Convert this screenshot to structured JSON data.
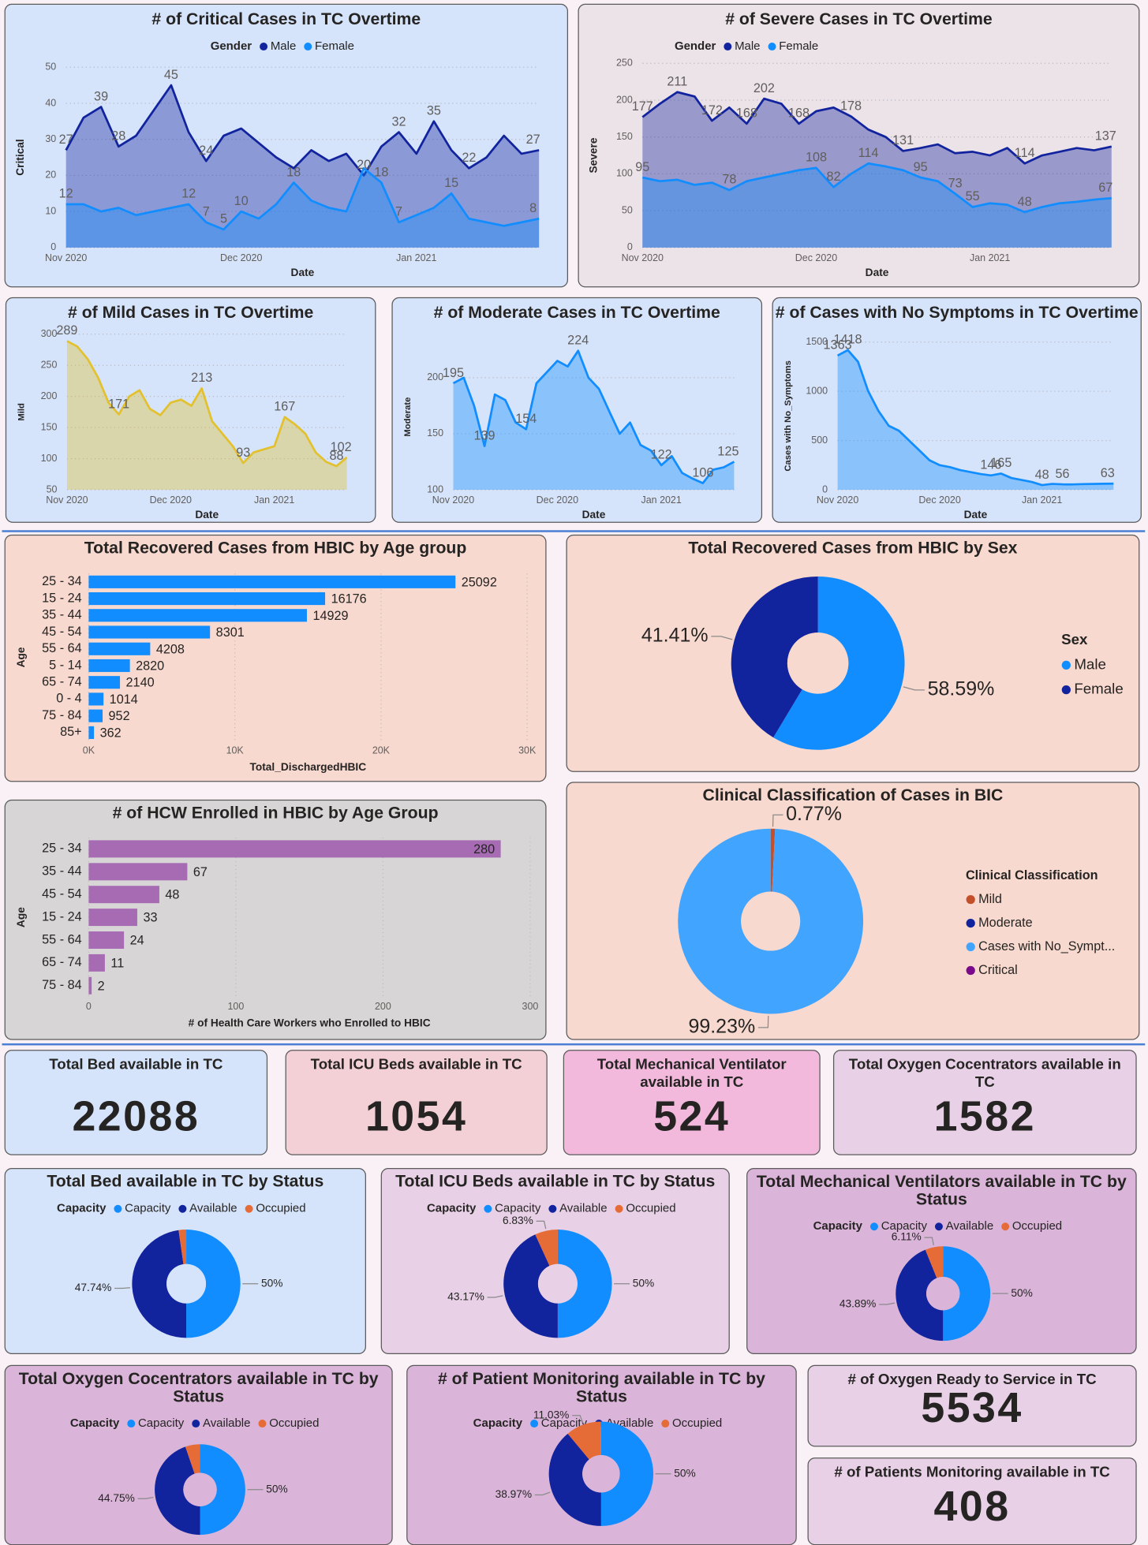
{
  "chart_data": [
    {
      "type": "line",
      "title": "# of Critical Cases in TC Overtime",
      "background": "#d6e4fb",
      "xlabel": "Date",
      "ylabel": "Critical",
      "legend_title": "Gender",
      "legend": "top",
      "grid": true,
      "categories": [
        "Nov 2020",
        null,
        null,
        null,
        null,
        null,
        null,
        null,
        null,
        null,
        "Dec 2020",
        null,
        null,
        null,
        null,
        null,
        null,
        null,
        null,
        null,
        "Jan 2021",
        null,
        null,
        null,
        null,
        null,
        null,
        null
      ],
      "ylim": [
        0,
        50
      ],
      "yticks": [
        0,
        10,
        20,
        30,
        40,
        50
      ],
      "series": [
        {
          "name": "Male",
          "color": "#12239e",
          "values": [
            27,
            36,
            39,
            28,
            31,
            38,
            45,
            32,
            24,
            31,
            33,
            29,
            25,
            22,
            27,
            24,
            26,
            20,
            28,
            32,
            26,
            35,
            27,
            22,
            25,
            31,
            26,
            27
          ],
          "value_labels": [
            "27",
            null,
            "39",
            "28",
            null,
            null,
            "45",
            null,
            "24",
            null,
            null,
            null,
            null,
            null,
            null,
            null,
            null,
            "20",
            null,
            "32",
            null,
            "35",
            null,
            "22",
            null,
            null,
            null,
            "27"
          ]
        },
        {
          "name": "Female",
          "color": "#118dff",
          "values": [
            12,
            12,
            10,
            11,
            9,
            10,
            11,
            12,
            7,
            5,
            10,
            8,
            12,
            18,
            13,
            11,
            10,
            22,
            18,
            7,
            9,
            11,
            15,
            8,
            7,
            6,
            7,
            8
          ],
          "value_labels": [
            "12",
            null,
            null,
            null,
            null,
            null,
            null,
            "12",
            "7",
            "5",
            "10",
            null,
            null,
            "18",
            null,
            null,
            null,
            null,
            "18",
            "7",
            null,
            null,
            "15",
            null,
            null,
            null,
            null,
            "8"
          ]
        }
      ]
    },
    {
      "type": "line",
      "title": "# of Severe Cases in TC Overtime",
      "background": "#ece3e8",
      "xlabel": "Date",
      "ylabel": "Severe",
      "legend_title": "Gender",
      "legend": "top",
      "grid": true,
      "categories": [
        "Nov 2020",
        null,
        null,
        null,
        null,
        null,
        null,
        null,
        null,
        null,
        "Dec 2020",
        null,
        null,
        null,
        null,
        null,
        null,
        null,
        null,
        null,
        "Jan 2021",
        null,
        null,
        null,
        null,
        null,
        null,
        null
      ],
      "ylim": [
        0,
        250
      ],
      "yticks": [
        0,
        50,
        100,
        150,
        200,
        250
      ],
      "series": [
        {
          "name": "Male",
          "color": "#12239e",
          "values": [
            177,
            195,
            211,
            205,
            172,
            190,
            168,
            202,
            195,
            168,
            185,
            190,
            178,
            160,
            150,
            131,
            135,
            140,
            128,
            130,
            125,
            135,
            114,
            125,
            130,
            135,
            132,
            137
          ],
          "value_labels": [
            "177",
            null,
            "211",
            null,
            "172",
            null,
            "168",
            "202",
            null,
            "168",
            null,
            null,
            "178",
            null,
            null,
            "131",
            null,
            null,
            null,
            null,
            null,
            null,
            "114",
            null,
            null,
            null,
            null,
            "137"
          ]
        },
        {
          "name": "Female",
          "color": "#118dff",
          "values": [
            95,
            90,
            92,
            85,
            88,
            78,
            90,
            95,
            100,
            105,
            108,
            82,
            100,
            114,
            110,
            105,
            95,
            90,
            73,
            55,
            60,
            58,
            48,
            55,
            60,
            62,
            65,
            67
          ],
          "value_labels": [
            "95",
            null,
            null,
            null,
            null,
            "78",
            null,
            null,
            null,
            null,
            "108",
            "82",
            null,
            "114",
            null,
            null,
            "95",
            null,
            "73",
            "55",
            null,
            null,
            "48",
            null,
            null,
            null,
            null,
            "67"
          ]
        }
      ]
    },
    {
      "type": "line",
      "title": "# of Mild Cases in TC Overtime",
      "background": "#d6e4fb",
      "xlabel": "Date",
      "ylabel": "Mild",
      "grid": true,
      "color": "#e3c12e",
      "categories": [
        "Nov 2020",
        null,
        null,
        null,
        null,
        null,
        null,
        null,
        null,
        null,
        "Dec 2020",
        null,
        null,
        null,
        null,
        null,
        null,
        null,
        null,
        null,
        "Jan 2021",
        null,
        null,
        null,
        null,
        null,
        null,
        null
      ],
      "ylim": [
        50,
        300
      ],
      "yticks": [
        50,
        100,
        150,
        200,
        250,
        300
      ],
      "values": [
        289,
        280,
        260,
        230,
        190,
        171,
        200,
        210,
        180,
        170,
        190,
        195,
        185,
        213,
        160,
        140,
        120,
        93,
        110,
        115,
        120,
        167,
        155,
        140,
        110,
        95,
        88,
        102
      ],
      "value_labels": [
        "289",
        null,
        null,
        null,
        null,
        "171",
        null,
        null,
        null,
        null,
        null,
        null,
        null,
        "213",
        null,
        null,
        null,
        "93",
        null,
        null,
        null,
        "167",
        null,
        null,
        null,
        null,
        "88",
        "102"
      ]
    },
    {
      "type": "line",
      "title": "# of Moderate Cases in TC Overtime",
      "background": "#d6e4fb",
      "xlabel": "Date",
      "ylabel": "Moderate",
      "grid": true,
      "color": "#118dff",
      "categories": [
        "Nov 2020",
        null,
        null,
        null,
        null,
        null,
        null,
        null,
        null,
        null,
        "Dec 2020",
        null,
        null,
        null,
        null,
        null,
        null,
        null,
        null,
        null,
        "Jan 2021",
        null,
        null,
        null,
        null,
        null,
        null,
        null
      ],
      "ylim": [
        100,
        230
      ],
      "yticks": [
        100,
        150,
        200
      ],
      "values": [
        195,
        200,
        175,
        139,
        185,
        180,
        160,
        154,
        195,
        205,
        215,
        210,
        224,
        200,
        190,
        170,
        150,
        160,
        140,
        135,
        122,
        130,
        115,
        110,
        106,
        118,
        120,
        125
      ],
      "value_labels": [
        "195",
        null,
        null,
        "139",
        null,
        null,
        null,
        "154",
        null,
        null,
        null,
        null,
        "224",
        null,
        null,
        null,
        null,
        null,
        null,
        null,
        "122",
        null,
        null,
        null,
        "106",
        null,
        null,
        "125"
      ]
    },
    {
      "type": "line",
      "title": "# of Cases with No Symptoms in TC Overtime",
      "background": "#d6e4fb",
      "xlabel": "Date",
      "ylabel": "Cases with No_Symptoms",
      "grid": true,
      "color": "#118dff",
      "categories": [
        "Nov 2020",
        null,
        null,
        null,
        null,
        null,
        null,
        null,
        null,
        null,
        "Dec 2020",
        null,
        null,
        null,
        null,
        null,
        null,
        null,
        null,
        null,
        "Jan 2021",
        null,
        null,
        null,
        null,
        null,
        null,
        null
      ],
      "ylim": [
        0,
        1500
      ],
      "yticks": [
        0,
        500,
        1000,
        1500
      ],
      "values": [
        1363,
        1418,
        1300,
        1000,
        800,
        650,
        600,
        500,
        400,
        300,
        250,
        230,
        200,
        180,
        160,
        146,
        165,
        120,
        100,
        80,
        48,
        60,
        56,
        55,
        58,
        60,
        62,
        63
      ],
      "value_labels": [
        "1363",
        "1418",
        null,
        null,
        null,
        null,
        null,
        null,
        null,
        null,
        null,
        null,
        null,
        null,
        null,
        "146",
        "165",
        null,
        null,
        null,
        "48",
        null,
        "56",
        null,
        null,
        null,
        null,
        "63"
      ]
    },
    {
      "type": "hbar",
      "title": "Total Recovered Cases from HBIC by Age group",
      "background": "#f8d9cf",
      "xlabel": "Total_DischargedHBIC",
      "ylabel": "Age",
      "grid": true,
      "color": "#118dff",
      "categories": [
        "25 - 34",
        "15 - 24",
        "35 - 44",
        "45 - 54",
        "55 - 64",
        "5 - 14",
        "65 - 74",
        "0 - 4",
        "75 - 84",
        "85+"
      ],
      "values": [
        25092,
        16176,
        14929,
        8301,
        4208,
        2820,
        2140,
        1014,
        952,
        362
      ],
      "xlim": [
        0,
        30000
      ],
      "xticks": [
        {
          "value": 0,
          "label": "0K"
        },
        {
          "value": 10000,
          "label": "10K"
        },
        {
          "value": 20000,
          "label": "20K"
        },
        {
          "value": 30000,
          "label": "30K"
        }
      ]
    },
    {
      "type": "donut",
      "title": "Total Recovered Cases from HBIC by Sex",
      "background": "#f8d9cf",
      "legend_title": "Sex",
      "legend": "right",
      "categories": [
        "Male",
        "Female"
      ],
      "colors": [
        "#118dff",
        "#12239e"
      ],
      "values": [
        58.59,
        41.41
      ],
      "value_labels": [
        "58.59%",
        "41.41%"
      ]
    },
    {
      "type": "hbar",
      "title": "# of HCW Enrolled in HBIC by Age Group",
      "background": "#d7d5d6",
      "xlabel": "# of Health Care Workers who Enrolled to HBIC",
      "ylabel": "Age",
      "grid": true,
      "color": "#a66bb3",
      "categories": [
        "25 - 34",
        "35 - 44",
        "45 - 54",
        "15 - 24",
        "55 - 64",
        "65 - 74",
        "75 - 84"
      ],
      "values": [
        280,
        67,
        48,
        33,
        24,
        11,
        2
      ],
      "xlim": [
        0,
        300
      ],
      "xticks": [
        0,
        100,
        200,
        300
      ]
    },
    {
      "type": "donut",
      "title": "Clinical Classification of Cases in BIC",
      "background": "#f8d9cf",
      "legend_title": "Clinical Classification",
      "legend": "right",
      "categories": [
        "Mild",
        "Moderate",
        "Cases with No_Sympt...",
        "Critical"
      ],
      "colors": [
        "#c4502b",
        "#12239e",
        "#41a4ff",
        "#7a0a8c"
      ],
      "values": [
        0.77,
        0,
        99.23,
        0
      ],
      "value_labels": [
        "0.77%",
        null,
        "99.23%",
        null
      ]
    },
    {
      "type": "donut",
      "title": "Total Bed available in TC by Status",
      "background": "#d6e4fb",
      "legend_title": "Capacity",
      "legend": "top",
      "categories": [
        "Capacity",
        "Available",
        "Occupied"
      ],
      "colors": [
        "#118dff",
        "#12239e",
        "#e66c37"
      ],
      "values": [
        50,
        47.74,
        2.26
      ],
      "value_labels": [
        "50%",
        "47.74%",
        null
      ]
    },
    {
      "type": "donut",
      "title": "Total ICU Beds available in TC by Status",
      "background": "#e8d0e6",
      "legend_title": "Capacity",
      "legend": "top",
      "categories": [
        "Capacity",
        "Available",
        "Occupied"
      ],
      "colors": [
        "#118dff",
        "#12239e",
        "#e66c37"
      ],
      "values": [
        50,
        43.17,
        6.83
      ],
      "value_labels": [
        "50%",
        "43.17%",
        "6.83%"
      ]
    },
    {
      "type": "donut",
      "title": "Total Mechanical Ventilators available in TC by Status",
      "background": "#dab5d9",
      "legend_title": "Capacity",
      "legend": "top",
      "categories": [
        "Capacity",
        "Available",
        "Occupied"
      ],
      "colors": [
        "#118dff",
        "#12239e",
        "#e66c37"
      ],
      "values": [
        50,
        43.89,
        6.11
      ],
      "value_labels": [
        "50%",
        "43.89%",
        "6.11%"
      ]
    },
    {
      "type": "donut",
      "title": "Total Oxygen Cocentrators available in TC by Status",
      "background": "#dab5d9",
      "legend_title": "Capacity",
      "legend": "top",
      "categories": [
        "Capacity",
        "Available",
        "Occupied"
      ],
      "colors": [
        "#118dff",
        "#12239e",
        "#e66c37"
      ],
      "values": [
        50,
        44.75,
        5.25
      ],
      "value_labels": [
        "50%",
        "44.75%",
        null
      ]
    },
    {
      "type": "donut",
      "title": "# of Patient Monitoring available in TC by Status",
      "background": "#dab5d9",
      "legend_title": "Capacity",
      "legend": "top",
      "categories": [
        "Capacity",
        "Available",
        "Occupied"
      ],
      "colors": [
        "#118dff",
        "#12239e",
        "#e66c37"
      ],
      "values": [
        50,
        38.97,
        11.03
      ],
      "value_labels": [
        "50%",
        "38.97%",
        "11.03%"
      ]
    }
  ],
  "cards": [
    {
      "title": "Total Bed available in TC",
      "value": "22088",
      "background": "#d6e4fb"
    },
    {
      "title": "Total ICU Beds available in TC",
      "value": "1054",
      "background": "#f3cfd6"
    },
    {
      "title": "Total Mechanical Ventilator available in TC",
      "value": "524",
      "background": "#f2b9dc"
    },
    {
      "title": "Total Oxygen Cocentrators available in TC",
      "value": "1582",
      "background": "#e8d0e6"
    },
    {
      "title": "# of Oxygen Ready to Service in TC",
      "value": "5534",
      "background": "#e8d0e6"
    },
    {
      "title": "# of Patients Monitoring available in TC",
      "value": "408",
      "background": "#e8d0e6"
    }
  ]
}
